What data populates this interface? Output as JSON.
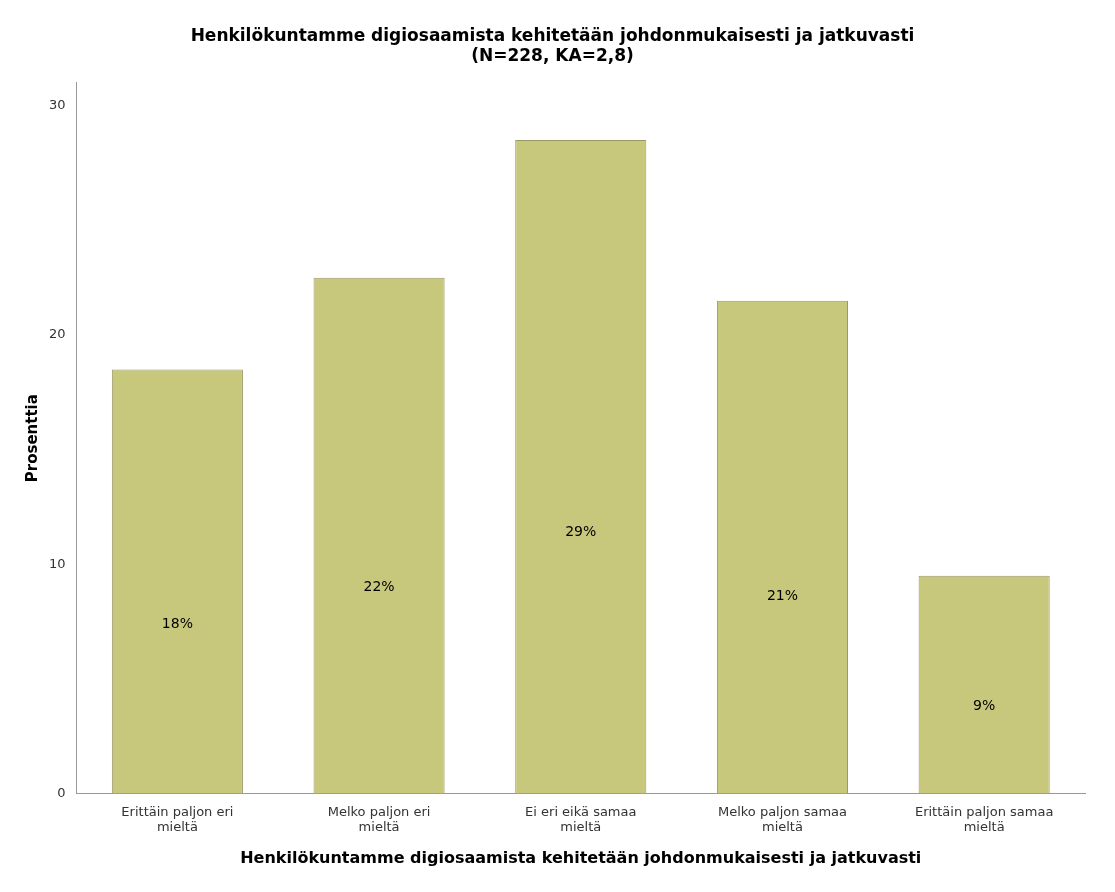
{
  "chart_data": {
    "type": "bar",
    "title": "Henkilökuntamme digiosaamista kehitetään johdonmukaisesti ja jatkuvasti\n(N=228, KA=2,8)",
    "xlabel": "Henkilökuntamme digiosaamista kehitetään johdonmukaisesti ja jatkuvasti",
    "ylabel": "Prosenttia",
    "categories": [
      "Erittäin paljon eri\nmieltä",
      "Melko paljon eri\nmieltä",
      "Ei eri eikä samaa\nmieltä",
      "Melko paljon samaa\nmieltä",
      "Erittäin paljon samaa\nmieltä"
    ],
    "values": [
      18.5,
      22.5,
      28.5,
      21.5,
      9.5
    ],
    "value_labels": [
      "18%",
      "22%",
      "29%",
      "21%",
      "9%"
    ],
    "data_labels": true,
    "color": "#c8c87d",
    "ylim": [
      0,
      31
    ],
    "yticks": [
      0,
      10,
      20,
      30
    ],
    "grid": false
  }
}
